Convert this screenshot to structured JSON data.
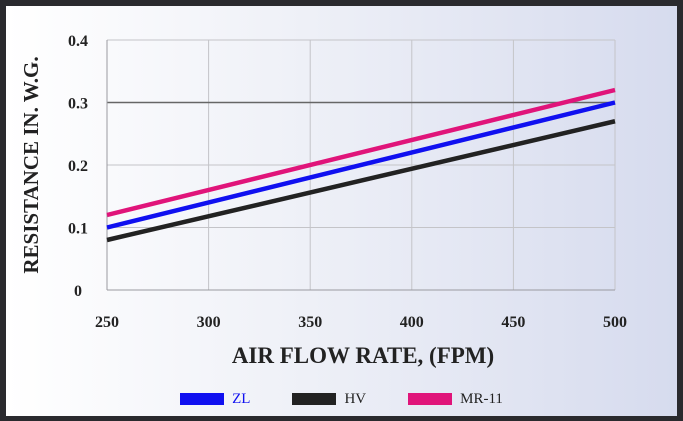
{
  "chart_data": {
    "type": "line",
    "title": "",
    "xlabel": "AIR FLOW RATE, (FPM)",
    "ylabel": "RESISTANCE IN. W.G.",
    "xlim": [
      250,
      500
    ],
    "ylim": [
      0,
      0.4
    ],
    "x_ticks": [
      "250",
      "300",
      "350",
      "400",
      "450",
      "500"
    ],
    "y_ticks": [
      "0",
      "0.1",
      "0.2",
      "0.3",
      "0.4"
    ],
    "grid": true,
    "legend_position": "bottom",
    "x": [
      250,
      500
    ],
    "series": [
      {
        "name": "ZL",
        "values": [
          0.1,
          0.3
        ],
        "color": "#1010f0"
      },
      {
        "name": "HV",
        "values": [
          0.08,
          0.27
        ],
        "color": "#222222"
      },
      {
        "name": "MR-11",
        "values": [
          0.12,
          0.32
        ],
        "color": "#e0147a"
      }
    ]
  }
}
